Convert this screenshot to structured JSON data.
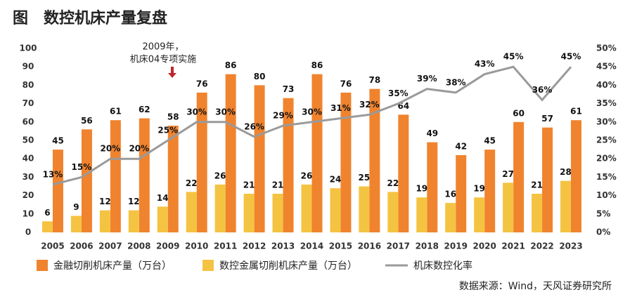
{
  "chart_data": {
    "type": "bar-line",
    "title": "图　数控机床产量复盘",
    "annotation": [
      "2009年，",
      "机床04专项实施"
    ],
    "source": "数据来源：Wind，天风证券研究所",
    "categories": [
      "2005",
      "2006",
      "2007",
      "2008",
      "2009",
      "2010",
      "2011",
      "2012",
      "2013",
      "2014",
      "2015",
      "2016",
      "2017",
      "2018",
      "2019",
      "2020",
      "2021",
      "2022",
      "2023"
    ],
    "series": [
      {
        "name": "金融切削机床产量（万台）",
        "color": "#f0832e",
        "values": [
          45,
          56,
          61,
          62,
          58,
          76,
          86,
          80,
          73,
          86,
          76,
          78,
          64,
          49,
          42,
          45,
          60,
          57,
          61
        ]
      },
      {
        "name": "数控金属切削机床产量（万台）",
        "color": "#f5c342",
        "values": [
          6,
          9,
          12,
          12,
          14,
          22,
          26,
          21,
          21,
          26,
          24,
          25,
          22,
          19,
          16,
          19,
          27,
          21,
          28
        ]
      },
      {
        "name": "机床数控化率",
        "color": "#9a9a9a",
        "axis": "y2",
        "values": [
          13,
          15,
          20,
          20,
          25,
          30,
          30,
          26,
          29,
          30,
          31,
          32,
          35,
          39,
          38,
          43,
          45,
          36,
          45
        ],
        "value_labels": [
          "13%",
          "15%",
          "20%",
          "20%",
          "25%",
          "30%",
          "30%",
          "26%",
          "29%",
          "30%",
          "31%",
          "32%",
          "35%",
          "39%",
          "38%",
          "43%",
          "45%",
          "36%",
          "45%"
        ]
      }
    ],
    "ylim": [
      0,
      100
    ],
    "yticks": [
      0,
      10,
      20,
      30,
      40,
      50,
      60,
      70,
      80,
      90,
      100
    ],
    "y2lim": [
      0,
      50
    ],
    "y2ticks": [
      {
        "value": 0,
        "label": "0%"
      },
      {
        "value": 5,
        "label": "5%"
      },
      {
        "value": 10,
        "label": "10%"
      },
      {
        "value": 15,
        "label": "15%"
      },
      {
        "value": 20,
        "label": "20%"
      },
      {
        "value": 25,
        "label": "25%"
      },
      {
        "value": 30,
        "label": "30%"
      },
      {
        "value": 35,
        "label": "35%"
      },
      {
        "value": 40,
        "label": "40%"
      },
      {
        "value": 45,
        "label": "45%"
      },
      {
        "value": 50,
        "label": "50%"
      }
    ]
  }
}
